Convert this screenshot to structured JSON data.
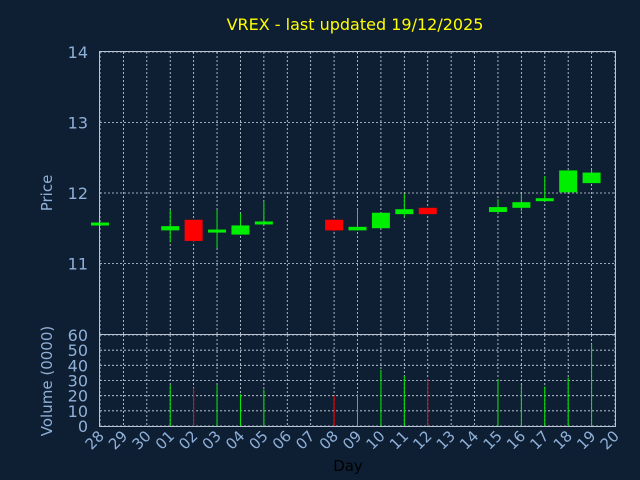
{
  "chart_data": {
    "type": "candlestick",
    "title": "VREX - last updated 19/12/2025",
    "xlabel": "Day",
    "colors": {
      "up": "#00ee00",
      "down": "#ff0000",
      "background": "#0f1f33",
      "text": "#8fb0d8",
      "title": "#ffff00"
    },
    "x_ticks": [
      "28",
      "29",
      "30",
      "01",
      "02",
      "03",
      "04",
      "05",
      "06",
      "07",
      "08",
      "09",
      "10",
      "11",
      "12",
      "13",
      "14",
      "15",
      "16",
      "17",
      "18",
      "19",
      "20"
    ],
    "price": {
      "ylabel": "Price",
      "ylim": [
        10,
        14
      ],
      "yticks": [
        11,
        12,
        13,
        14
      ],
      "grid": true
    },
    "volume": {
      "ylabel": "Volume (0000)",
      "ylim": [
        0,
        60
      ],
      "yticks": [
        0,
        10,
        20,
        30,
        40,
        50,
        60
      ],
      "grid": true
    },
    "candles": [
      {
        "day": "28",
        "open": 11.56,
        "high": 11.56,
        "low": 11.56,
        "close": 11.56,
        "volume": 0,
        "dir": "up"
      },
      {
        "day": "01",
        "open": 11.47,
        "high": 11.76,
        "low": 11.3,
        "close": 11.53,
        "volume": 27,
        "dir": "up"
      },
      {
        "day": "02",
        "open": 11.62,
        "high": 11.62,
        "low": 11.3,
        "close": 11.32,
        "volume": 25,
        "dir": "down"
      },
      {
        "day": "03",
        "open": 11.45,
        "high": 11.76,
        "low": 11.22,
        "close": 11.47,
        "volume": 27,
        "dir": "up"
      },
      {
        "day": "04",
        "open": 11.41,
        "high": 11.71,
        "low": 11.41,
        "close": 11.54,
        "volume": 21,
        "dir": "up"
      },
      {
        "day": "05",
        "open": 11.56,
        "high": 11.88,
        "low": 11.56,
        "close": 11.59,
        "volume": 24,
        "dir": "up"
      },
      {
        "day": "08",
        "open": 11.62,
        "high": 11.62,
        "low": 11.46,
        "close": 11.47,
        "volume": 20,
        "dir": "down"
      },
      {
        "day": "09",
        "open": 11.47,
        "high": 11.77,
        "low": 11.47,
        "close": 11.52,
        "volume": 21,
        "dir": "up"
      },
      {
        "day": "10",
        "open": 11.5,
        "high": 11.72,
        "low": 11.5,
        "close": 11.72,
        "volume": 37,
        "dir": "up"
      },
      {
        "day": "11",
        "open": 11.7,
        "high": 11.99,
        "low": 11.66,
        "close": 11.77,
        "volume": 33,
        "dir": "up"
      },
      {
        "day": "12",
        "open": 11.79,
        "high": 11.79,
        "low": 11.7,
        "close": 11.7,
        "volume": 31,
        "dir": "down"
      },
      {
        "day": "15",
        "open": 11.73,
        "high": 11.91,
        "low": 11.72,
        "close": 11.8,
        "volume": 31,
        "dir": "up"
      },
      {
        "day": "16",
        "open": 11.79,
        "high": 11.99,
        "low": 11.74,
        "close": 11.87,
        "volume": 27,
        "dir": "up"
      },
      {
        "day": "17",
        "open": 11.89,
        "high": 12.24,
        "low": 11.88,
        "close": 11.92,
        "volume": 26,
        "dir": "up"
      },
      {
        "day": "18",
        "open": 12.01,
        "high": 12.32,
        "low": 12.01,
        "close": 12.32,
        "volume": 32,
        "dir": "up"
      },
      {
        "day": "19",
        "open": 12.14,
        "high": 12.33,
        "low": 12.14,
        "close": 12.29,
        "volume": 54,
        "dir": "up"
      }
    ]
  }
}
